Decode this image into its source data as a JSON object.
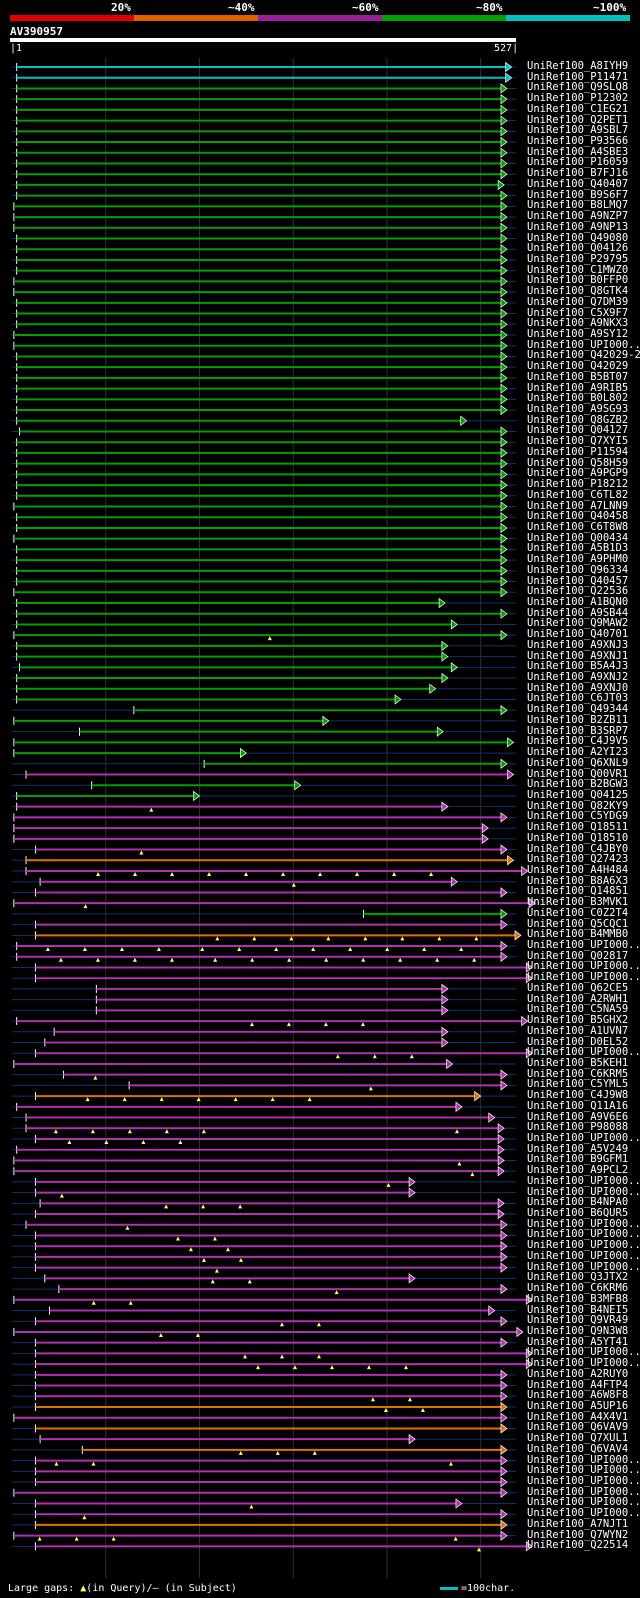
{
  "legend": {
    "segments": [
      {
        "label": "20%",
        "color": "#e00000"
      },
      {
        "label": "~40%",
        "color": "#e06000"
      },
      {
        "label": "~60%",
        "color": "#9b1e9b"
      },
      {
        "label": "~80%",
        "color": "#00a000"
      },
      {
        "label": "~100%",
        "color": "#00c0c0"
      }
    ]
  },
  "query": {
    "name": "AV390957",
    "start": "1",
    "end": "527",
    "length": 527
  },
  "footer": {
    "gaps_label": "Large gaps: ",
    "gaps_query": "(in Query)/",
    "gaps_dash": "–",
    "gaps_subject": " (in Subject)",
    "scale_label": "=100char."
  },
  "colors": {
    "cyan": "#00c0c0",
    "green": "#00a000",
    "magenta": "#b030b0",
    "orange": "#e07000",
    "line": "#103070",
    "triangle": "#ffff60"
  },
  "hits": [
    {
      "name": "UniRef100_A8IYH9",
      "c": "cyan",
      "s": 5,
      "e": 533,
      "t": 0
    },
    {
      "name": "UniRef100_P11471",
      "c": "cyan",
      "s": 5,
      "e": 533,
      "t": 0
    },
    {
      "name": "UniRef100_Q9SLQ8",
      "c": "green",
      "s": 5,
      "e": 528,
      "t": 0
    },
    {
      "name": "UniRef100_P12302",
      "c": "green",
      "s": 5,
      "e": 528,
      "t": 0
    },
    {
      "name": "UniRef100_C1EG21",
      "c": "green",
      "s": 5,
      "e": 528,
      "t": 0
    },
    {
      "name": "UniRef100_Q2PET1",
      "c": "green",
      "s": 5,
      "e": 528,
      "t": 0
    },
    {
      "name": "UniRef100_A9SBL7",
      "c": "green",
      "s": 5,
      "e": 528,
      "t": 0
    },
    {
      "name": "UniRef100_P93566",
      "c": "green",
      "s": 5,
      "e": 528,
      "t": 0
    },
    {
      "name": "UniRef100_A4SBE3",
      "c": "green",
      "s": 5,
      "e": 528,
      "t": 0
    },
    {
      "name": "UniRef100_P16059",
      "c": "green",
      "s": 5,
      "e": 528,
      "t": 0
    },
    {
      "name": "UniRef100_B7FJ16",
      "c": "green",
      "s": 5,
      "e": 528,
      "t": 0
    },
    {
      "name": "UniRef100_Q40407",
      "c": "green",
      "s": 5,
      "e": 525,
      "t": 0
    },
    {
      "name": "UniRef100_B9S6F7",
      "c": "green",
      "s": 5,
      "e": 528,
      "t": 0
    },
    {
      "name": "UniRef100_B8LMQ7",
      "c": "green",
      "s": 2,
      "e": 528,
      "t": 0
    },
    {
      "name": "UniRef100_A9NZP7",
      "c": "green",
      "s": 2,
      "e": 528,
      "t": 0
    },
    {
      "name": "UniRef100_A9NP13",
      "c": "green",
      "s": 2,
      "e": 528,
      "t": 0
    },
    {
      "name": "UniRef100_Q49080",
      "c": "green",
      "s": 5,
      "e": 528,
      "t": 0
    },
    {
      "name": "UniRef100_Q04126",
      "c": "green",
      "s": 5,
      "e": 528,
      "t": 0
    },
    {
      "name": "UniRef100_P29795",
      "c": "green",
      "s": 5,
      "e": 528,
      "t": 0
    },
    {
      "name": "UniRef100_C1MWZ0",
      "c": "green",
      "s": 5,
      "e": 528,
      "t": 0
    },
    {
      "name": "UniRef100_B0FFP0",
      "c": "green",
      "s": 2,
      "e": 528,
      "t": 0
    },
    {
      "name": "UniRef100_Q8GTK4",
      "c": "green",
      "s": 2,
      "e": 528,
      "t": 0
    },
    {
      "name": "UniRef100_Q7DM39",
      "c": "green",
      "s": 5,
      "e": 528,
      "t": 0
    },
    {
      "name": "UniRef100_C5X9F7",
      "c": "green",
      "s": 5,
      "e": 528,
      "t": 0
    },
    {
      "name": "UniRef100_A9NKX3",
      "c": "green",
      "s": 5,
      "e": 528,
      "t": 0
    },
    {
      "name": "UniRef100_A9SY12",
      "c": "green",
      "s": 2,
      "e": 528,
      "t": 0
    },
    {
      "name": "UniRef100_UPI000..",
      "c": "green",
      "s": 2,
      "e": 528,
      "t": 0
    },
    {
      "name": "UniRef100_Q42029-2",
      "c": "green",
      "s": 5,
      "e": 528,
      "t": 0
    },
    {
      "name": "UniRef100_Q42029",
      "c": "green",
      "s": 5,
      "e": 528,
      "t": 0
    },
    {
      "name": "UniRef100_B5BT07",
      "c": "green",
      "s": 5,
      "e": 528,
      "t": 0
    },
    {
      "name": "UniRef100_A9RIB5",
      "c": "green",
      "s": 5,
      "e": 528,
      "t": 0
    },
    {
      "name": "UniRef100_B0L802",
      "c": "green",
      "s": 5,
      "e": 528,
      "t": 0
    },
    {
      "name": "UniRef100_A9SG93",
      "c": "green",
      "s": 5,
      "e": 528,
      "t": 0
    },
    {
      "name": "UniRef100_Q8GZB2",
      "c": "green",
      "s": 5,
      "e": 485,
      "t": 0
    },
    {
      "name": "UniRef100_Q04127",
      "c": "green",
      "s": 8,
      "e": 528,
      "t": 0
    },
    {
      "name": "UniRef100_Q7XYI5",
      "c": "green",
      "s": 5,
      "e": 528,
      "t": 0
    },
    {
      "name": "UniRef100_P11594",
      "c": "green",
      "s": 5,
      "e": 528,
      "t": 0
    },
    {
      "name": "UniRef100_Q58H59",
      "c": "green",
      "s": 5,
      "e": 528,
      "t": 0
    },
    {
      "name": "UniRef100_A9PGP9",
      "c": "green",
      "s": 5,
      "e": 528,
      "t": 0
    },
    {
      "name": "UniRef100_P18212",
      "c": "green",
      "s": 5,
      "e": 528,
      "t": 0
    },
    {
      "name": "UniRef100_C6TL82",
      "c": "green",
      "s": 5,
      "e": 528,
      "t": 0
    },
    {
      "name": "UniRef100_A7LNN9",
      "c": "green",
      "s": 2,
      "e": 528,
      "t": 0
    },
    {
      "name": "UniRef100_Q40458",
      "c": "green",
      "s": 5,
      "e": 528,
      "t": 0
    },
    {
      "name": "UniRef100_C6T8W8",
      "c": "green",
      "s": 5,
      "e": 528,
      "t": 0
    },
    {
      "name": "UniRef100_Q00434",
      "c": "green",
      "s": 2,
      "e": 528,
      "t": 0
    },
    {
      "name": "UniRef100_A5B1D3",
      "c": "green",
      "s": 5,
      "e": 528,
      "t": 0
    },
    {
      "name": "UniRef100_A9PHM0",
      "c": "green",
      "s": 5,
      "e": 528,
      "t": 0
    },
    {
      "name": "UniRef100_Q96334",
      "c": "green",
      "s": 5,
      "e": 528,
      "t": 0
    },
    {
      "name": "UniRef100_Q40457",
      "c": "green",
      "s": 5,
      "e": 528,
      "t": 0
    },
    {
      "name": "UniRef100_Q22536",
      "c": "green",
      "s": 2,
      "e": 528,
      "t": 0
    },
    {
      "name": "UniRef100_A1BQN0",
      "c": "green",
      "s": 5,
      "e": 462,
      "t": 0
    },
    {
      "name": "UniRef100_A9SB44",
      "c": "green",
      "s": 5,
      "e": 528,
      "t": 0
    },
    {
      "name": "UniRef100_Q9MAW2",
      "c": "green",
      "s": 5,
      "e": 475,
      "t": 0
    },
    {
      "name": "UniRef100_Q40701",
      "c": "green",
      "s": 2,
      "e": 528,
      "t": 1
    },
    {
      "name": "UniRef100_A9XNJ3",
      "c": "green",
      "s": 5,
      "e": 465,
      "t": 0
    },
    {
      "name": "UniRef100_A9XNJ1",
      "c": "green",
      "s": 5,
      "e": 465,
      "t": 0
    },
    {
      "name": "UniRef100_B5A4J3",
      "c": "green",
      "s": 8,
      "e": 475,
      "t": 0
    },
    {
      "name": "UniRef100_A9XNJ2",
      "c": "green",
      "s": 5,
      "e": 465,
      "t": 0
    },
    {
      "name": "UniRef100_A9XNJ0",
      "c": "green",
      "s": 5,
      "e": 452,
      "t": 0
    },
    {
      "name": "UniRef100_C6JT03",
      "c": "green",
      "s": 5,
      "e": 415,
      "t": 0
    },
    {
      "name": "UniRef100_Q49344",
      "c": "green",
      "s": 130,
      "e": 528,
      "t": 0
    },
    {
      "name": "UniRef100_B2ZB11",
      "c": "green",
      "s": 2,
      "e": 338,
      "t": 0
    },
    {
      "name": "UniRef100_B3SRP7",
      "c": "green",
      "s": 72,
      "e": 460,
      "t": 0
    },
    {
      "name": "UniRef100_C4J9V5",
      "c": "green",
      "s": 2,
      "e": 535,
      "t": 0
    },
    {
      "name": "UniRef100_A2YI23",
      "c": "green",
      "s": 2,
      "e": 250,
      "t": 0
    },
    {
      "name": "UniRef100_Q6XNL9",
      "c": "green",
      "s": 205,
      "e": 528,
      "t": 0
    },
    {
      "name": "UniRef100_Q00VR1",
      "c": "magenta",
      "s": 15,
      "e": 535,
      "t": 0
    },
    {
      "name": "UniRef100_B2BGW3",
      "c": "green",
      "s": 85,
      "e": 308,
      "t": 0
    },
    {
      "name": "UniRef100_Q04125",
      "c": "green",
      "s": 5,
      "e": 200,
      "t": 0
    },
    {
      "name": "UniRef100_Q82KY9",
      "c": "magenta",
      "s": 5,
      "e": 465,
      "t": 1
    },
    {
      "name": "UniRef100_C5YDG9",
      "c": "magenta",
      "s": 2,
      "e": 528,
      "t": 0
    },
    {
      "name": "UniRef100_Q18511",
      "c": "magenta",
      "s": 2,
      "e": 508,
      "t": 0
    },
    {
      "name": "UniRef100_Q18510",
      "c": "magenta",
      "s": 2,
      "e": 508,
      "t": 0
    },
    {
      "name": "UniRef100_C4JBY0",
      "c": "magenta",
      "s": 25,
      "e": 528,
      "t": 1
    },
    {
      "name": "UniRef100_Q27423",
      "c": "orange",
      "s": 15,
      "e": 535,
      "t": 0
    },
    {
      "name": "UniRef100_A4H484",
      "c": "magenta",
      "s": 15,
      "e": 550,
      "t": 10
    },
    {
      "name": "UniRef100_B8A6X3",
      "c": "magenta",
      "s": 30,
      "e": 475,
      "t": 1
    },
    {
      "name": "UniRef100_Q14851",
      "c": "magenta",
      "s": 25,
      "e": 528,
      "t": 0
    },
    {
      "name": "UniRef100_B3MVK1",
      "c": "magenta",
      "s": 2,
      "e": 558,
      "t": 1
    },
    {
      "name": "UniRef100_C0Z2T4",
      "c": "green",
      "s": 375,
      "e": 528,
      "t": 0
    },
    {
      "name": "UniRef100_Q5CQC1",
      "c": "magenta",
      "s": 25,
      "e": 528,
      "t": 0
    },
    {
      "name": "UniRef100_B4MMB0",
      "c": "orange",
      "s": 25,
      "e": 543,
      "t": 8
    },
    {
      "name": "UniRef100_UPI000..",
      "c": "magenta",
      "s": 5,
      "e": 528,
      "t": 12
    },
    {
      "name": "UniRef100_Q02817",
      "c": "magenta",
      "s": 5,
      "e": 528,
      "t": 12
    },
    {
      "name": "UniRef100_UPI000..",
      "c": "magenta",
      "s": 25,
      "e": 555,
      "t": 0
    },
    {
      "name": "UniRef100_UPI000..",
      "c": "magenta",
      "s": 25,
      "e": 555,
      "t": 0
    },
    {
      "name": "UniRef100_Q62CE5",
      "c": "magenta",
      "s": 90,
      "e": 465,
      "t": 0
    },
    {
      "name": "UniRef100_A2RWH1",
      "c": "magenta",
      "s": 90,
      "e": 465,
      "t": 0
    },
    {
      "name": "UniRef100_C5NA59",
      "c": "magenta",
      "s": 90,
      "e": 465,
      "t": 0
    },
    {
      "name": "UniRef100_B5GHX2",
      "c": "magenta",
      "s": 5,
      "e": 550,
      "t": 4
    },
    {
      "name": "UniRef100_A1UVN7",
      "c": "magenta",
      "s": 45,
      "e": 465,
      "t": 0
    },
    {
      "name": "UniRef100_D0EL52",
      "c": "magenta",
      "s": 35,
      "e": 465,
      "t": 0
    },
    {
      "name": "UniRef100_UPI000..",
      "c": "magenta",
      "s": 25,
      "e": 555,
      "t": 3
    },
    {
      "name": "UniRef100_B5KEH1",
      "c": "magenta",
      "s": 2,
      "e": 470,
      "t": 0
    },
    {
      "name": "UniRef100_C6KRM5",
      "c": "magenta",
      "s": 55,
      "e": 528,
      "t": 1
    },
    {
      "name": "UniRef100_C5YML5",
      "c": "magenta",
      "s": 125,
      "e": 528,
      "t": 1
    },
    {
      "name": "UniRef100_C4J9W8",
      "c": "orange",
      "s": 25,
      "e": 500,
      "t": 7
    },
    {
      "name": "UniRef100_Q11A16",
      "c": "magenta",
      "s": 5,
      "e": 480,
      "t": 0
    },
    {
      "name": "UniRef100_A9V6E6",
      "c": "magenta",
      "s": 15,
      "e": 515,
      "t": 0
    },
    {
      "name": "UniRef100_P98088",
      "c": "magenta",
      "s": 15,
      "e": 525,
      "t": 6
    },
    {
      "name": "UniRef100_UPI000..",
      "c": "magenta",
      "s": 25,
      "e": 525,
      "t": 4
    },
    {
      "name": "UniRef100_A5V249",
      "c": "magenta",
      "s": 5,
      "e": 525,
      "t": 0
    },
    {
      "name": "UniRef100_B9GFM1",
      "c": "magenta",
      "s": 2,
      "e": 525,
      "t": 1
    },
    {
      "name": "UniRef100_A9PCL2",
      "c": "magenta",
      "s": 2,
      "e": 525,
      "t": 1
    },
    {
      "name": "UniRef100_UPI000..",
      "c": "magenta",
      "s": 25,
      "e": 430,
      "t": 1
    },
    {
      "name": "UniRef100_UPI000..",
      "c": "magenta",
      "s": 25,
      "e": 430,
      "t": 1
    },
    {
      "name": "UniRef100_B4NPA0",
      "c": "magenta",
      "s": 30,
      "e": 525,
      "t": 3
    },
    {
      "name": "UniRef100_B6QUR5",
      "c": "magenta",
      "s": 25,
      "e": 525,
      "t": 0
    },
    {
      "name": "UniRef100_UPI000..",
      "c": "magenta",
      "s": 15,
      "e": 528,
      "t": 1
    },
    {
      "name": "UniRef100_UPI000..",
      "c": "magenta",
      "s": 25,
      "e": 528,
      "t": 2
    },
    {
      "name": "UniRef100_UPI000..",
      "c": "magenta",
      "s": 25,
      "e": 528,
      "t": 2
    },
    {
      "name": "UniRef100_UPI000..",
      "c": "magenta",
      "s": 25,
      "e": 528,
      "t": 2
    },
    {
      "name": "UniRef100_UPI000..",
      "c": "magenta",
      "s": 25,
      "e": 528,
      "t": 1
    },
    {
      "name": "UniRef100_Q3JTX2",
      "c": "magenta",
      "s": 35,
      "e": 430,
      "t": 2
    },
    {
      "name": "UniRef100_C6KRM6",
      "c": "magenta",
      "s": 50,
      "e": 528,
      "t": 1
    },
    {
      "name": "UniRef100_B3MFB8",
      "c": "magenta",
      "s": 2,
      "e": 555,
      "t": 2
    },
    {
      "name": "UniRef100_B4NEI5",
      "c": "magenta",
      "s": 40,
      "e": 515,
      "t": 0
    },
    {
      "name": "UniRef100_Q9VR49",
      "c": "magenta",
      "s": 25,
      "e": 528,
      "t": 2
    },
    {
      "name": "UniRef100_Q9N3W8",
      "c": "magenta",
      "s": 2,
      "e": 545,
      "t": 2
    },
    {
      "name": "UniRef100_A5YT41",
      "c": "magenta",
      "s": 25,
      "e": 528,
      "t": 0
    },
    {
      "name": "UniRef100_UPI000..",
      "c": "magenta",
      "s": 25,
      "e": 555,
      "t": 3
    },
    {
      "name": "UniRef100_UPI000..",
      "c": "magenta",
      "s": 25,
      "e": 555,
      "t": 5
    },
    {
      "name": "UniRef100_A2RUY0",
      "c": "magenta",
      "s": 25,
      "e": 528,
      "t": 0
    },
    {
      "name": "UniRef100_A4FTP4",
      "c": "magenta",
      "s": 25,
      "e": 528,
      "t": 0
    },
    {
      "name": "UniRef100_A6W8F8",
      "c": "magenta",
      "s": 25,
      "e": 528,
      "t": 2
    },
    {
      "name": "UniRef100_A5UP16",
      "c": "orange",
      "s": 25,
      "e": 528,
      "t": 2
    },
    {
      "name": "UniRef100_A4X4V1",
      "c": "magenta",
      "s": 2,
      "e": 528,
      "t": 0
    },
    {
      "name": "UniRef100_Q6VAV9",
      "c": "orange",
      "s": 25,
      "e": 528,
      "t": 0
    },
    {
      "name": "UniRef100_Q7XUL1",
      "c": "magenta",
      "s": 30,
      "e": 430,
      "t": 0
    },
    {
      "name": "UniRef100_Q6VAV4",
      "c": "orange",
      "s": 75,
      "e": 528,
      "t": 3
    },
    {
      "name": "UniRef100_UPI000..",
      "c": "magenta",
      "s": 25,
      "e": 528,
      "t": 3
    },
    {
      "name": "UniRef100_UPI000..",
      "c": "magenta",
      "s": 25,
      "e": 528,
      "t": 0
    },
    {
      "name": "UniRef100_UPI000..",
      "c": "magenta",
      "s": 25,
      "e": 528,
      "t": 0
    },
    {
      "name": "UniRef100_UPI000..",
      "c": "magenta",
      "s": 2,
      "e": 528,
      "t": 0
    },
    {
      "name": "UniRef100_UPI000..",
      "c": "magenta",
      "s": 25,
      "e": 480,
      "t": 1
    },
    {
      "name": "UniRef100_UPI000..",
      "c": "magenta",
      "s": 25,
      "e": 528,
      "t": 1
    },
    {
      "name": "UniRef100_A7NJT1",
      "c": "orange",
      "s": 25,
      "e": 528,
      "t": 0
    },
    {
      "name": "UniRef100_Q7WYN2",
      "c": "magenta",
      "s": 2,
      "e": 528,
      "t": 4
    },
    {
      "name": "UniRef100_Q22514",
      "c": "magenta",
      "s": 25,
      "e": 555,
      "t": 1
    }
  ]
}
